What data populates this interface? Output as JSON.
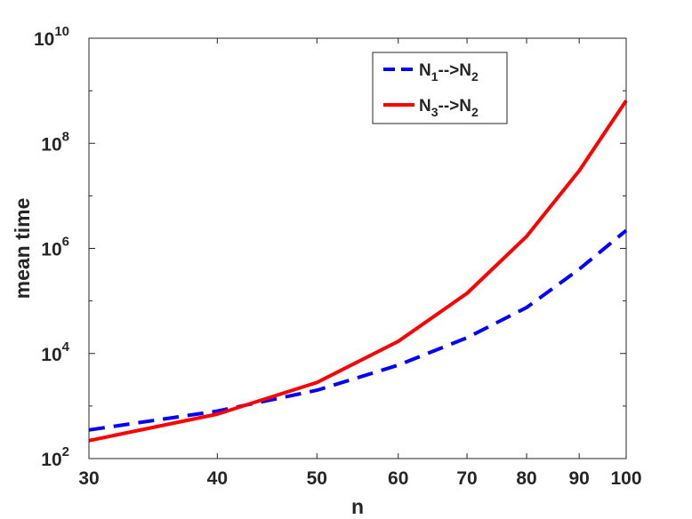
{
  "chart_data": {
    "type": "line",
    "xlabel": "n",
    "ylabel": "mean time",
    "xscale": "log",
    "yscale": "log",
    "xlim": [
      30,
      100
    ],
    "ylim": [
      100,
      10000000000
    ],
    "x_ticks": [
      30,
      40,
      50,
      60,
      70,
      80,
      90,
      100
    ],
    "x_tick_labels": [
      "30",
      "40",
      "50",
      "60",
      "70",
      "80",
      "90",
      "100"
    ],
    "y_ticks": [
      {
        "value": 100,
        "base": "10",
        "exp": "2"
      },
      {
        "value": 10000,
        "base": "10",
        "exp": "4"
      },
      {
        "value": 1000000,
        "base": "10",
        "exp": "6"
      },
      {
        "value": 100000000,
        "base": "10",
        "exp": "8"
      },
      {
        "value": 10000000000,
        "base": "10",
        "exp": "10"
      }
    ],
    "legend_position": "top-right",
    "grid": false,
    "x": [
      30,
      40,
      50,
      60,
      70,
      80,
      90,
      100
    ],
    "series": [
      {
        "name": "N1-->N2",
        "name_parts": {
          "a": "N",
          "a_sub": "1",
          "arrow": "-->",
          "b": "N",
          "b_sub": "2"
        },
        "color": "#0000ff",
        "style": "dashed",
        "values": [
          350,
          800,
          2000,
          6000,
          20000,
          75000,
          400000,
          2200000
        ]
      },
      {
        "name": "N3-->N2",
        "name_parts": {
          "a": "N",
          "a_sub": "3",
          "arrow": "-->",
          "b": "N",
          "b_sub": "2"
        },
        "color": "#ff0000",
        "style": "solid",
        "values": [
          220,
          700,
          2800,
          17000,
          140000,
          1700000,
          30000000,
          650000000
        ]
      }
    ]
  }
}
